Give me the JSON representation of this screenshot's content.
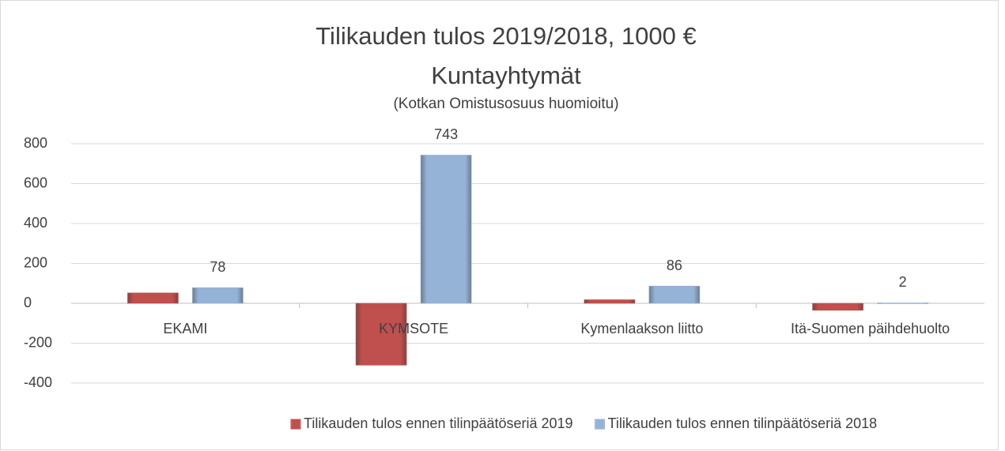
{
  "chart_data": {
    "type": "bar",
    "title": [
      "Tilikauden tulos 2019/2018, 1000 €",
      "Kuntayhtymät"
    ],
    "subtitle": "(Kotkan Omistusosuus huomioitu)",
    "categories": [
      "EKAMI",
      "KYMSOTE",
      "Kymenlaakson liitto",
      "Itä-Suomen päihdehuolto"
    ],
    "series": [
      {
        "name": "Tilikauden tulos ennen tilinpäätöseriä 2019",
        "color": "#c0504d",
        "values": [
          52,
          -310,
          18,
          -35
        ]
      },
      {
        "name": "Tilikauden tulos ennen tilinpäätöseriä 2018",
        "color": "#95b3d7",
        "values": [
          78,
          743,
          86,
          2
        ],
        "show_labels": true
      }
    ],
    "ylim": [
      -400,
      800
    ],
    "yticks": [
      -400,
      -200,
      0,
      200,
      400,
      600,
      800
    ],
    "grid": true,
    "legend": "bottom"
  }
}
